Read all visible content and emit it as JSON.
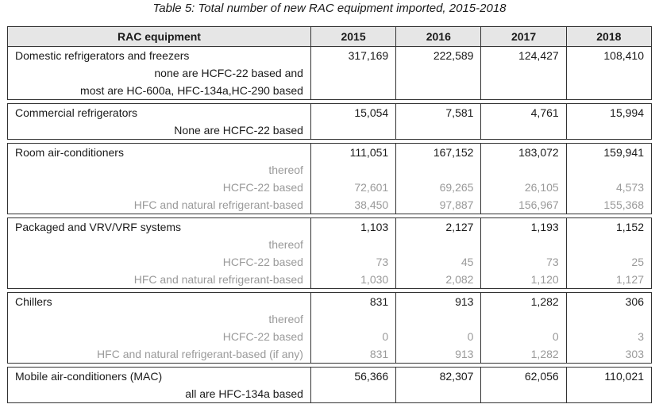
{
  "caption": "Table 5: Total number of new RAC equipment imported, 2015-2018",
  "headers": [
    "RAC equipment",
    "2015",
    "2016",
    "2017",
    "2018"
  ],
  "groups": [
    {
      "rows": [
        {
          "label": "Domestic refrigerators and freezers",
          "style": "main",
          "values": [
            "317,169",
            "222,589",
            "124,427",
            "108,410"
          ]
        },
        {
          "label": "none are HCFC-22 based and",
          "style": "sub-dark",
          "values": [
            "",
            "",
            "",
            ""
          ]
        },
        {
          "label": "most are HC-600a, HFC-134a,HC-290 based",
          "style": "sub-dark",
          "values": [
            "",
            "",
            "",
            ""
          ]
        }
      ]
    },
    {
      "rows": [
        {
          "label": "Commercial refrigerators",
          "style": "main",
          "values": [
            "15,054",
            "7,581",
            "4,761",
            "15,994"
          ]
        },
        {
          "label": "None are HCFC-22 based",
          "style": "sub-dark",
          "values": [
            "",
            "",
            "",
            ""
          ]
        }
      ]
    },
    {
      "rows": [
        {
          "label": "Room air-conditioners",
          "style": "main",
          "values": [
            "111,051",
            "167,152",
            "183,072",
            "159,941"
          ]
        },
        {
          "label": "thereof",
          "style": "sub-grey",
          "values": [
            "",
            "",
            "",
            ""
          ]
        },
        {
          "label": "HCFC-22 based",
          "style": "sub-grey",
          "values": [
            "72,601",
            "69,265",
            "26,105",
            "4,573"
          ]
        },
        {
          "label": "HFC and natural refrigerant-based",
          "style": "sub-grey",
          "values": [
            "38,450",
            "97,887",
            "156,967",
            "155,368"
          ]
        }
      ]
    },
    {
      "rows": [
        {
          "label": "Packaged and VRV/VRF systems",
          "style": "main",
          "values": [
            "1,103",
            "2,127",
            "1,193",
            "1,152"
          ]
        },
        {
          "label": "thereof",
          "style": "sub-grey",
          "values": [
            "",
            "",
            "",
            ""
          ]
        },
        {
          "label": "HCFC-22 based",
          "style": "sub-grey",
          "values": [
            "73",
            "45",
            "73",
            "25"
          ]
        },
        {
          "label": "HFC and natural refrigerant-based",
          "style": "sub-grey",
          "values": [
            "1,030",
            "2,082",
            "1,120",
            "1,127"
          ]
        }
      ]
    },
    {
      "rows": [
        {
          "label": "Chillers",
          "style": "main",
          "values": [
            "831",
            "913",
            "1,282",
            "306"
          ]
        },
        {
          "label": "thereof",
          "style": "sub-grey",
          "values": [
            "",
            "",
            "",
            ""
          ]
        },
        {
          "label": "HCFC-22 based",
          "style": "sub-grey",
          "values": [
            "0",
            "0",
            "0",
            "3"
          ]
        },
        {
          "label": "HFC and natural refrigerant-based (if any)",
          "style": "sub-grey",
          "values": [
            "831",
            "913",
            "1,282",
            "303"
          ]
        }
      ]
    },
    {
      "rows": [
        {
          "label": "Mobile air-conditioners (MAC)",
          "style": "main",
          "values": [
            "56,366",
            "82,307",
            "62,056",
            "110,021"
          ]
        },
        {
          "label": "all are HFC-134a based",
          "style": "sub-dark",
          "values": [
            "",
            "",
            "",
            ""
          ]
        }
      ]
    }
  ]
}
